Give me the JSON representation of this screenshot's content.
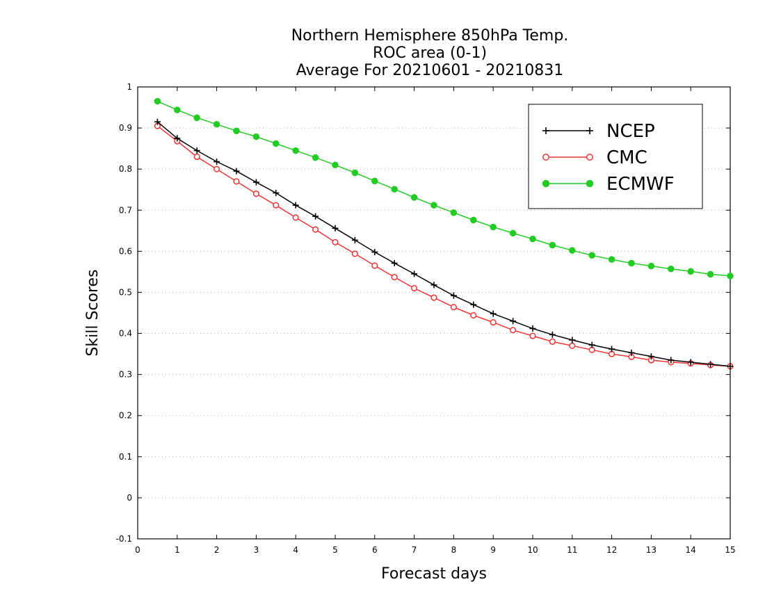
{
  "chart_data": {
    "type": "line",
    "title_lines": [
      "Northern Hemisphere 850hPa Temp.",
      "ROC area (0-1)",
      "Average For 20210601 - 20210831"
    ],
    "xlabel": "Forecast days",
    "ylabel": "Skill Scores",
    "xlim": [
      0,
      15
    ],
    "ylim": [
      -0.1,
      1
    ],
    "x_ticks": [
      0,
      1,
      2,
      3,
      4,
      5,
      6,
      7,
      8,
      9,
      10,
      11,
      12,
      13,
      14,
      15
    ],
    "x_tick_labels": [
      "0",
      "1",
      "2",
      "3",
      "4",
      "5",
      "6",
      "7",
      "8",
      "9",
      "10",
      "11",
      "12",
      "13",
      "14",
      "15"
    ],
    "y_ticks": [
      -0.1,
      0,
      0.1,
      0.2,
      0.3,
      0.4,
      0.5,
      0.6,
      0.7,
      0.8,
      0.9,
      1
    ],
    "y_tick_labels": [
      "-0.1",
      "0",
      "0.1",
      "0.2",
      "0.3",
      "0.4",
      "0.5",
      "0.6",
      "0.7",
      "0.8",
      "0.9",
      "1"
    ],
    "grid": "horizontal dotted",
    "legend_position": "top-right",
    "x": [
      0.5,
      1,
      1.5,
      2,
      2.5,
      3,
      3.5,
      4,
      4.5,
      5,
      5.5,
      6,
      6.5,
      7,
      7.5,
      8,
      8.5,
      9,
      9.5,
      10,
      10.5,
      11,
      11.5,
      12,
      12.5,
      13,
      13.5,
      14,
      14.5,
      15
    ],
    "series": [
      {
        "name": "NCEP",
        "color": "#000000",
        "marker": "plus",
        "values": [
          0.915,
          0.875,
          0.845,
          0.818,
          0.795,
          0.768,
          0.742,
          0.712,
          0.685,
          0.656,
          0.627,
          0.598,
          0.571,
          0.545,
          0.518,
          0.492,
          0.47,
          0.448,
          0.43,
          0.412,
          0.397,
          0.384,
          0.372,
          0.362,
          0.353,
          0.344,
          0.335,
          0.33,
          0.325,
          0.32
        ]
      },
      {
        "name": "CMC",
        "color": "#ee3333",
        "marker": "open-circle",
        "values": [
          0.905,
          0.868,
          0.83,
          0.8,
          0.77,
          0.74,
          0.712,
          0.682,
          0.653,
          0.622,
          0.594,
          0.565,
          0.537,
          0.51,
          0.487,
          0.464,
          0.444,
          0.427,
          0.408,
          0.394,
          0.38,
          0.37,
          0.36,
          0.35,
          0.343,
          0.335,
          0.33,
          0.327,
          0.323,
          0.32
        ]
      },
      {
        "name": "ECMWF",
        "color": "#22cc22",
        "marker": "filled-circle",
        "values": [
          0.965,
          0.944,
          0.925,
          0.909,
          0.893,
          0.879,
          0.862,
          0.845,
          0.828,
          0.81,
          0.791,
          0.771,
          0.751,
          0.731,
          0.712,
          0.694,
          0.676,
          0.659,
          0.644,
          0.63,
          0.615,
          0.602,
          0.59,
          0.58,
          0.571,
          0.564,
          0.557,
          0.551,
          0.544,
          0.54
        ]
      }
    ]
  }
}
